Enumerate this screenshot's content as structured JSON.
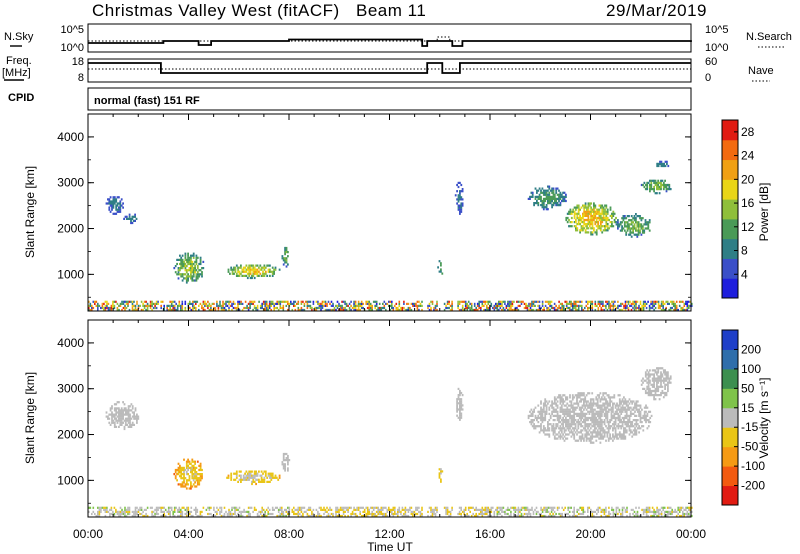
{
  "header": {
    "station": "Christmas Valley West (fitACF)",
    "beam": "Beam 11",
    "date": "29/Mar/2019"
  },
  "strip": {
    "nsky_label": "N.Sky",
    "nsky_ticks": [
      "10^5",
      "10^0"
    ],
    "nsearch_label": "N.Search",
    "nsearch_ticks": [
      "10^5",
      "10^0"
    ],
    "freq_label": [
      "Freq.",
      "[MHz]"
    ],
    "freq_ticks": [
      "18",
      "8"
    ],
    "nave_label": "Nave",
    "nave_ticks": [
      "60",
      "0"
    ],
    "cpid_label": "CPID",
    "cpid_text": "normal (fast) 151 RF"
  },
  "colors": {
    "power_scale": [
      "#1f1fdc",
      "#3a4fc8",
      "#2f7e86",
      "#4a9a57",
      "#8fbf3a",
      "#e9d516",
      "#f0a014",
      "#f36a10",
      "#e11b12"
    ],
    "velocity_scale": [
      "#e11b12",
      "#f35a10",
      "#f59a14",
      "#e9c516",
      "#bbbbbb",
      "#7fc34a",
      "#3c8f4f",
      "#2f6eab",
      "#1f3fc8"
    ]
  },
  "chart_data": [
    {
      "type": "heatmap",
      "name": "power",
      "ylabel": "Slant Range [km]",
      "ylim": [
        200,
        4500
      ],
      "yticks": [
        "1000",
        "2000",
        "3000",
        "4000"
      ],
      "colorbar": {
        "label": "Power [dB]",
        "ticks": [
          "4",
          "8",
          "12",
          "16",
          "20",
          "24",
          "28"
        ],
        "range": [
          0,
          30
        ]
      },
      "regions": [
        {
          "t": [
            3.4,
            4.6
          ],
          "r": [
            800,
            1450
          ],
          "v": [
            8,
            16,
            4,
            22
          ]
        },
        {
          "t": [
            5.5,
            7.6
          ],
          "r": [
            900,
            1200
          ],
          "v": [
            10,
            20,
            8,
            24
          ]
        },
        {
          "t": [
            7.7,
            8.0
          ],
          "r": [
            1150,
            1600
          ],
          "v": [
            8,
            14,
            4,
            18
          ]
        },
        {
          "t": [
            0.7,
            1.4
          ],
          "r": [
            2300,
            2700
          ],
          "v": [
            4,
            8,
            4,
            10
          ]
        },
        {
          "t": [
            1.4,
            2.0
          ],
          "r": [
            2100,
            2300
          ],
          "v": [
            4,
            8,
            4,
            8
          ]
        },
        {
          "t": [
            13.9,
            14.1
          ],
          "r": [
            950,
            1300
          ],
          "v": [
            8,
            12,
            4,
            16
          ]
        },
        {
          "t": [
            14.6,
            14.9
          ],
          "r": [
            2300,
            3000
          ],
          "v": [
            4,
            8,
            4,
            12
          ]
        },
        {
          "t": [
            17.5,
            19.0
          ],
          "r": [
            2400,
            2900
          ],
          "v": [
            6,
            12,
            4,
            14
          ]
        },
        {
          "t": [
            19.0,
            21.0
          ],
          "r": [
            1850,
            2550
          ],
          "v": [
            12,
            20,
            8,
            26
          ]
        },
        {
          "t": [
            21.0,
            22.4
          ],
          "r": [
            1800,
            2300
          ],
          "v": [
            8,
            14,
            4,
            18
          ]
        },
        {
          "t": [
            22.0,
            23.2
          ],
          "r": [
            2750,
            3050
          ],
          "v": [
            8,
            14,
            4,
            16
          ]
        },
        {
          "t": [
            22.4,
            23.2
          ],
          "r": [
            3300,
            3450
          ],
          "v": [
            4,
            8,
            4,
            10
          ]
        }
      ],
      "groundband": {
        "t": [
          0,
          24
        ],
        "r": [
          200,
          420
        ]
      },
      "gaps": [
        [
          13.3,
          13.5
        ],
        [
          13.9,
          14.15
        ],
        [
          14.5,
          14.7
        ]
      ]
    },
    {
      "type": "heatmap",
      "name": "velocity",
      "ylabel": "Slant Range [km]",
      "ylim": [
        200,
        4500
      ],
      "yticks": [
        "1000",
        "2000",
        "3000",
        "4000"
      ],
      "colorbar": {
        "label": "Velocity [m s⁻¹]",
        "ticks": [
          "200",
          "100",
          "50",
          "15",
          "-15",
          "-50",
          "-100",
          "-200"
        ],
        "range": [
          -250,
          250
        ]
      },
      "regions": [
        {
          "t": [
            3.4,
            4.6
          ],
          "r": [
            800,
            1450
          ],
          "v": [
            -120,
            -30,
            -200,
            0
          ]
        },
        {
          "t": [
            5.5,
            7.6
          ],
          "r": [
            900,
            1200
          ],
          "v": [
            -70,
            -10,
            -120,
            0
          ]
        },
        {
          "t": [
            7.7,
            8.0
          ],
          "r": [
            1150,
            1600
          ],
          "v": [
            -20,
            10,
            -30,
            15
          ]
        },
        {
          "t": [
            0.7,
            2.0
          ],
          "r": [
            2100,
            2700
          ],
          "v": [
            -10,
            10,
            -15,
            15
          ]
        },
        {
          "t": [
            13.9,
            14.1
          ],
          "r": [
            950,
            1300
          ],
          "v": [
            -60,
            -20,
            -80,
            0
          ]
        },
        {
          "t": [
            14.6,
            14.9
          ],
          "r": [
            2300,
            3000
          ],
          "v": [
            -10,
            10,
            -15,
            20
          ]
        },
        {
          "t": [
            17.5,
            22.4
          ],
          "r": [
            1800,
            2900
          ],
          "v": [
            -10,
            10,
            -30,
            60
          ]
        },
        {
          "t": [
            22.0,
            23.2
          ],
          "r": [
            2750,
            3450
          ],
          "v": [
            -10,
            10,
            -15,
            15
          ]
        }
      ],
      "groundband": {
        "t": [
          0,
          24
        ],
        "r": [
          200,
          420
        ]
      },
      "gaps": [
        [
          13.3,
          13.5
        ],
        [
          13.9,
          14.15
        ],
        [
          14.5,
          14.7
        ]
      ]
    }
  ],
  "xaxis": {
    "label": "Time UT",
    "xlim": [
      0,
      24
    ],
    "ticks": [
      "00:00",
      "04:00",
      "08:00",
      "12:00",
      "16:00",
      "20:00",
      "00:00"
    ]
  }
}
